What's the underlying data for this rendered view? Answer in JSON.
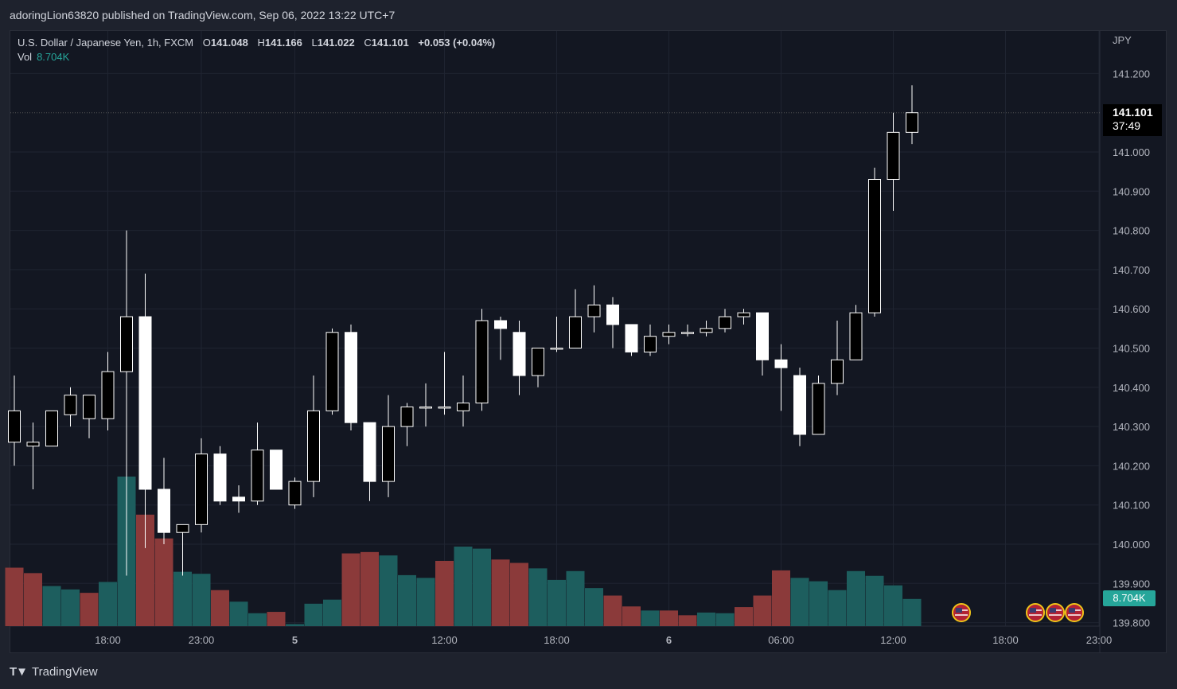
{
  "header": {
    "published_line": "adoringLion63820 published on TradingView.com, Sep 06, 2022 13:22 UTC+7"
  },
  "legend": {
    "symbol": "U.S. Dollar / Japanese Yen, 1h, FXCM",
    "open_label": "O",
    "open": "141.048",
    "high_label": "H",
    "high": "141.166",
    "low_label": "L",
    "low": "141.022",
    "close_label": "C",
    "close": "141.101",
    "change": "+0.053 (+0.04%)",
    "vol_label": "Vol",
    "vol_value": "8.704K"
  },
  "price_axis": {
    "currency": "JPY",
    "last_price": "141.101",
    "countdown": "37:49",
    "vol_tag": "8.704K"
  },
  "footer": {
    "brand": "TradingView"
  },
  "colors": {
    "background": "#131722",
    "grid": "#1f2431",
    "candle_up_fill": "#000000",
    "candle_down_fill": "#ffffff",
    "candle_border": "#ffffff",
    "volume_up": "#1d5e5e",
    "volume_down": "#8b3a3a",
    "vol_tag": "#26a69a"
  },
  "chart_data": {
    "type": "candlestick",
    "title": "U.S. Dollar / Japanese Yen, 1h, FXCM",
    "ylabel": "JPY",
    "ylim": [
      139.8,
      141.3
    ],
    "y_ticks": [
      "139.800",
      "139.900",
      "140.000",
      "140.100",
      "140.200",
      "140.300",
      "140.400",
      "140.500",
      "140.600",
      "140.700",
      "140.800",
      "140.900",
      "141.000",
      "141.200"
    ],
    "x_ticks": [
      {
        "label": "18:00",
        "index": 5
      },
      {
        "label": "23:00",
        "index": 10
      },
      {
        "label": "5",
        "index": 15
      },
      {
        "label": "12:00",
        "index": 23
      },
      {
        "label": "18:00",
        "index": 29
      },
      {
        "label": "6",
        "index": 35
      },
      {
        "label": "06:00",
        "index": 41
      },
      {
        "label": "12:00",
        "index": 47
      },
      {
        "label": "18:00",
        "index": 53
      },
      {
        "label": "23:00",
        "index": 58
      }
    ],
    "candles": [
      {
        "o": 140.26,
        "h": 140.43,
        "l": 140.2,
        "c": 140.34
      },
      {
        "o": 140.25,
        "h": 140.31,
        "l": 140.14,
        "c": 140.26
      },
      {
        "o": 140.25,
        "h": 140.34,
        "l": 140.25,
        "c": 140.34
      },
      {
        "o": 140.33,
        "h": 140.4,
        "l": 140.3,
        "c": 140.38
      },
      {
        "o": 140.32,
        "h": 140.38,
        "l": 140.27,
        "c": 140.38
      },
      {
        "o": 140.32,
        "h": 140.49,
        "l": 140.29,
        "c": 140.44
      },
      {
        "o": 140.44,
        "h": 140.8,
        "l": 139.92,
        "c": 140.58
      },
      {
        "o": 140.58,
        "h": 140.69,
        "l": 139.99,
        "c": 140.14
      },
      {
        "o": 140.14,
        "h": 140.22,
        "l": 140.0,
        "c": 140.03
      },
      {
        "o": 140.03,
        "h": 140.05,
        "l": 139.92,
        "c": 140.05
      },
      {
        "o": 140.05,
        "h": 140.27,
        "l": 140.03,
        "c": 140.23
      },
      {
        "o": 140.23,
        "h": 140.25,
        "l": 140.1,
        "c": 140.11
      },
      {
        "o": 140.12,
        "h": 140.15,
        "l": 140.08,
        "c": 140.11
      },
      {
        "o": 140.11,
        "h": 140.31,
        "l": 140.1,
        "c": 140.24
      },
      {
        "o": 140.24,
        "h": 140.24,
        "l": 140.14,
        "c": 140.14
      },
      {
        "o": 140.1,
        "h": 140.17,
        "l": 140.09,
        "c": 140.16
      },
      {
        "o": 140.16,
        "h": 140.43,
        "l": 140.12,
        "c": 140.34
      },
      {
        "o": 140.34,
        "h": 140.55,
        "l": 140.33,
        "c": 140.54
      },
      {
        "o": 140.54,
        "h": 140.56,
        "l": 140.29,
        "c": 140.31
      },
      {
        "o": 140.31,
        "h": 140.31,
        "l": 140.11,
        "c": 140.16
      },
      {
        "o": 140.16,
        "h": 140.38,
        "l": 140.12,
        "c": 140.3
      },
      {
        "o": 140.3,
        "h": 140.36,
        "l": 140.25,
        "c": 140.35
      },
      {
        "o": 140.35,
        "h": 140.41,
        "l": 140.3,
        "c": 140.35
      },
      {
        "o": 140.35,
        "h": 140.49,
        "l": 140.33,
        "c": 140.35
      },
      {
        "o": 140.34,
        "h": 140.43,
        "l": 140.3,
        "c": 140.36
      },
      {
        "o": 140.36,
        "h": 140.6,
        "l": 140.34,
        "c": 140.57
      },
      {
        "o": 140.57,
        "h": 140.58,
        "l": 140.47,
        "c": 140.55
      },
      {
        "o": 140.54,
        "h": 140.57,
        "l": 140.38,
        "c": 140.43
      },
      {
        "o": 140.43,
        "h": 140.5,
        "l": 140.4,
        "c": 140.5
      },
      {
        "o": 140.5,
        "h": 140.58,
        "l": 140.49,
        "c": 140.5
      },
      {
        "o": 140.5,
        "h": 140.65,
        "l": 140.5,
        "c": 140.58
      },
      {
        "o": 140.58,
        "h": 140.66,
        "l": 140.54,
        "c": 140.61
      },
      {
        "o": 140.61,
        "h": 140.63,
        "l": 140.5,
        "c": 140.56
      },
      {
        "o": 140.56,
        "h": 140.56,
        "l": 140.48,
        "c": 140.49
      },
      {
        "o": 140.49,
        "h": 140.56,
        "l": 140.48,
        "c": 140.53
      },
      {
        "o": 140.53,
        "h": 140.56,
        "l": 140.51,
        "c": 140.54
      },
      {
        "o": 140.54,
        "h": 140.56,
        "l": 140.53,
        "c": 140.54
      },
      {
        "o": 140.54,
        "h": 140.57,
        "l": 140.53,
        "c": 140.55
      },
      {
        "o": 140.55,
        "h": 140.6,
        "l": 140.54,
        "c": 140.58
      },
      {
        "o": 140.58,
        "h": 140.6,
        "l": 140.56,
        "c": 140.59
      },
      {
        "o": 140.59,
        "h": 140.59,
        "l": 140.43,
        "c": 140.47
      },
      {
        "o": 140.47,
        "h": 140.51,
        "l": 140.34,
        "c": 140.45
      },
      {
        "o": 140.43,
        "h": 140.45,
        "l": 140.25,
        "c": 140.28
      },
      {
        "o": 140.28,
        "h": 140.43,
        "l": 140.28,
        "c": 140.41
      },
      {
        "o": 140.41,
        "h": 140.57,
        "l": 140.38,
        "c": 140.47
      },
      {
        "o": 140.47,
        "h": 140.61,
        "l": 140.47,
        "c": 140.59
      },
      {
        "o": 140.59,
        "h": 140.96,
        "l": 140.58,
        "c": 140.93
      },
      {
        "o": 140.93,
        "h": 141.1,
        "l": 140.85,
        "c": 141.05
      },
      {
        "o": 141.05,
        "h": 141.17,
        "l": 141.02,
        "c": 141.1
      }
    ],
    "volume_series": {
      "name": "Vol",
      "values": [
        0.86,
        0.78,
        0.59,
        0.54,
        0.49,
        0.65,
        2.2,
        1.64,
        1.29,
        0.8,
        0.77,
        0.53,
        0.36,
        0.19,
        0.21,
        0.03,
        0.33,
        0.39,
        1.07,
        1.09,
        1.04,
        0.75,
        0.71,
        0.96,
        1.17,
        1.14,
        0.98,
        0.93,
        0.85,
        0.68,
        0.81,
        0.56,
        0.45,
        0.29,
        0.23,
        0.23,
        0.16,
        0.2,
        0.19,
        0.28,
        0.45,
        0.82,
        0.71,
        0.66,
        0.53,
        0.81,
        0.74,
        0.6,
        0.4
      ],
      "directions": [
        "down",
        "down",
        "up",
        "up",
        "down",
        "up",
        "up",
        "down",
        "down",
        "up",
        "up",
        "down",
        "up",
        "up",
        "down",
        "up",
        "up",
        "up",
        "down",
        "down",
        "up",
        "up",
        "up",
        "down",
        "up",
        "up",
        "down",
        "down",
        "up",
        "up",
        "up",
        "up",
        "down",
        "down",
        "up",
        "down",
        "down",
        "up",
        "up",
        "down",
        "down",
        "down",
        "up",
        "up",
        "up",
        "up",
        "up",
        "up",
        "up"
      ],
      "last_value": "8.704K"
    }
  }
}
